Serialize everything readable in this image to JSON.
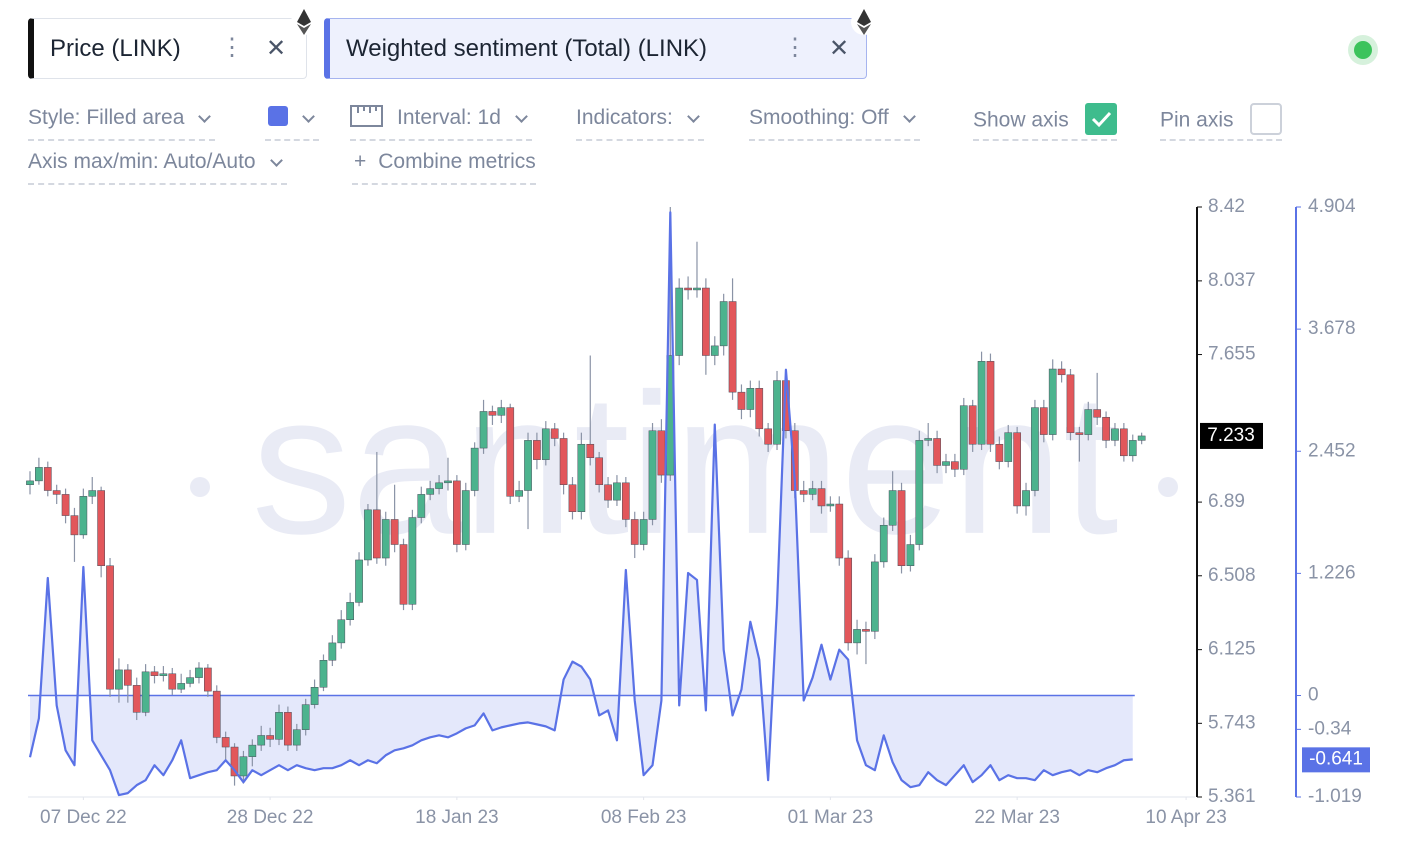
{
  "toolbar": {
    "style": "Style: Filled area",
    "interval": "Interval: 1d",
    "indicators": "Indicators:",
    "smoothing": "Smoothing: Off",
    "show_axis": "Show axis",
    "pin_axis": "Pin axis",
    "axis_range": "Axis max/min: Auto/Auto",
    "combine": "Combine metrics"
  },
  "watermark": "santiment",
  "chart_data": {
    "type": "candlestick",
    "x": [
      "2022-12-01",
      "2022-12-02",
      "2022-12-03",
      "2022-12-04",
      "2022-12-05",
      "2022-12-06",
      "2022-12-07",
      "2022-12-08",
      "2022-12-09",
      "2022-12-10",
      "2022-12-11",
      "2022-12-12",
      "2022-12-13",
      "2022-12-14",
      "2022-12-15",
      "2022-12-16",
      "2022-12-17",
      "2022-12-18",
      "2022-12-19",
      "2022-12-20",
      "2022-12-21",
      "2022-12-22",
      "2022-12-23",
      "2022-12-24",
      "2022-12-25",
      "2022-12-26",
      "2022-12-27",
      "2022-12-28",
      "2022-12-29",
      "2022-12-30",
      "2022-12-31",
      "2023-01-01",
      "2023-01-02",
      "2023-01-03",
      "2023-01-04",
      "2023-01-05",
      "2023-01-06",
      "2023-01-07",
      "2023-01-08",
      "2023-01-09",
      "2023-01-10",
      "2023-01-11",
      "2023-01-12",
      "2023-01-13",
      "2023-01-14",
      "2023-01-15",
      "2023-01-16",
      "2023-01-17",
      "2023-01-18",
      "2023-01-19",
      "2023-01-20",
      "2023-01-21",
      "2023-01-22",
      "2023-01-23",
      "2023-01-24",
      "2023-01-25",
      "2023-01-26",
      "2023-01-27",
      "2023-01-28",
      "2023-01-29",
      "2023-01-30",
      "2023-01-31",
      "2023-02-01",
      "2023-02-02",
      "2023-02-03",
      "2023-02-04",
      "2023-02-05",
      "2023-02-06",
      "2023-02-07",
      "2023-02-08",
      "2023-02-09",
      "2023-02-10",
      "2023-02-11",
      "2023-02-12",
      "2023-02-13",
      "2023-02-14",
      "2023-02-15",
      "2023-02-16",
      "2023-02-17",
      "2023-02-18",
      "2023-02-19",
      "2023-02-20",
      "2023-02-21",
      "2023-02-22",
      "2023-02-23",
      "2023-02-24",
      "2023-02-25",
      "2023-02-26",
      "2023-02-27",
      "2023-02-28",
      "2023-03-01",
      "2023-03-02",
      "2023-03-03",
      "2023-03-04",
      "2023-03-05",
      "2023-03-06",
      "2023-03-07",
      "2023-03-08",
      "2023-03-09",
      "2023-03-10",
      "2023-03-11",
      "2023-03-12",
      "2023-03-13",
      "2023-03-14",
      "2023-03-15",
      "2023-03-16",
      "2023-03-17",
      "2023-03-18",
      "2023-03-19",
      "2023-03-20",
      "2023-03-21",
      "2023-03-22",
      "2023-03-23",
      "2023-03-24",
      "2023-03-25",
      "2023-03-26",
      "2023-03-27",
      "2023-03-28",
      "2023-03-29",
      "2023-03-30",
      "2023-03-31",
      "2023-04-01",
      "2023-04-02",
      "2023-04-03",
      "2023-04-04",
      "2023-04-05"
    ],
    "xlim": [
      "2022-12-01",
      "2023-04-11"
    ],
    "xticks": [
      {
        "value": "2022-12-07",
        "label": "07 Dec 22"
      },
      {
        "value": "2022-12-28",
        "label": "28 Dec 22"
      },
      {
        "value": "2023-01-18",
        "label": "18 Jan 23"
      },
      {
        "value": "2023-02-08",
        "label": "08 Feb 23"
      },
      {
        "value": "2023-03-01",
        "label": "01 Mar 23"
      },
      {
        "value": "2023-03-22",
        "label": "22 Mar 23"
      },
      {
        "value": "2023-04-10",
        "label": "10 Apr 23"
      }
    ],
    "ylim": [
      5.361,
      8.42
    ],
    "yticks": [
      5.361,
      5.743,
      6.125,
      6.508,
      6.89,
      7.655,
      8.037,
      8.42
    ],
    "y2lim": [
      -1.019,
      4.904
    ],
    "y2ticks": [
      -1.019,
      -0.34,
      0,
      1.226,
      2.452,
      3.678,
      4.904
    ],
    "series": [
      {
        "name": "Price (LINK)",
        "type": "candlestick",
        "up_color": "#4cb38e",
        "down_color": "#e2575b",
        "open": [
          6.98,
          7.0,
          7.07,
          6.95,
          6.93,
          6.82,
          6.72,
          6.92,
          6.95,
          6.56,
          5.92,
          6.02,
          5.94,
          5.8,
          6.01,
          5.99,
          6.0,
          5.92,
          5.95,
          5.98,
          6.03,
          5.91,
          5.67,
          5.62,
          5.47,
          5.57,
          5.63,
          5.68,
          5.66,
          5.8,
          5.63,
          5.71,
          5.84,
          5.93,
          6.07,
          6.16,
          6.28,
          6.37,
          6.59,
          6.85,
          6.6,
          6.8,
          6.67,
          6.36,
          6.81,
          6.93,
          6.96,
          6.99,
          7.0,
          6.67,
          6.95,
          7.17,
          7.36,
          7.34,
          7.38,
          6.92,
          6.95,
          7.21,
          7.11,
          7.27,
          7.22,
          6.98,
          6.84,
          7.19,
          7.12,
          6.98,
          6.9,
          6.99,
          6.8,
          6.67,
          6.8,
          7.26,
          7.03,
          7.65,
          8.0,
          7.99,
          8.0,
          7.65,
          7.7,
          7.93,
          7.46,
          7.37,
          7.48,
          7.27,
          7.19,
          7.52,
          7.26,
          6.95,
          6.93,
          6.96,
          6.87,
          6.88,
          6.6,
          6.16,
          6.23,
          6.22,
          6.58,
          6.77,
          6.95,
          6.56,
          6.67,
          7.21,
          7.22,
          7.08,
          7.1,
          7.06,
          7.39,
          7.19,
          7.62,
          7.19,
          7.1,
          7.25,
          6.87,
          6.95,
          7.38,
          7.24,
          7.58,
          7.55,
          7.25,
          7.24,
          7.37,
          7.33,
          7.21,
          7.27,
          7.13,
          7.21
        ],
        "high": [
          7.05,
          7.12,
          7.1,
          6.98,
          6.96,
          6.86,
          6.96,
          7.02,
          6.97,
          6.6,
          6.08,
          6.05,
          5.98,
          6.05,
          6.04,
          6.04,
          6.03,
          6.0,
          6.02,
          6.06,
          6.05,
          5.94,
          5.7,
          5.64,
          5.6,
          5.66,
          5.73,
          5.72,
          5.84,
          5.83,
          5.74,
          5.87,
          5.97,
          6.1,
          6.2,
          6.33,
          6.42,
          6.63,
          6.88,
          7.15,
          6.84,
          6.98,
          6.7,
          6.85,
          6.97,
          7.0,
          7.03,
          7.12,
          7.03,
          6.99,
          7.2,
          7.42,
          7.39,
          7.42,
          7.4,
          7.0,
          7.25,
          7.25,
          7.31,
          7.3,
          7.25,
          7.02,
          7.25,
          7.65,
          7.15,
          7.02,
          7.03,
          7.02,
          6.84,
          6.84,
          7.3,
          7.32,
          8.42,
          8.05,
          8.06,
          8.24,
          8.05,
          7.75,
          7.97,
          8.05,
          7.5,
          7.52,
          7.52,
          7.3,
          7.57,
          7.56,
          7.3,
          7.0,
          7.0,
          7.0,
          6.92,
          6.92,
          6.64,
          6.28,
          6.27,
          6.62,
          6.81,
          7.05,
          6.99,
          6.72,
          7.26,
          7.3,
          7.26,
          7.14,
          7.14,
          7.43,
          7.42,
          7.67,
          7.66,
          7.23,
          7.29,
          7.28,
          6.99,
          7.42,
          7.42,
          7.63,
          7.62,
          7.58,
          7.28,
          7.41,
          7.56,
          7.36,
          7.3,
          7.3,
          7.24,
          7.25
        ],
        "low": [
          6.93,
          6.98,
          6.92,
          6.88,
          6.78,
          6.58,
          6.7,
          6.88,
          6.5,
          5.88,
          5.85,
          5.85,
          5.76,
          5.78,
          5.95,
          5.96,
          5.89,
          5.9,
          5.93,
          5.95,
          5.88,
          5.64,
          5.55,
          5.42,
          5.43,
          5.52,
          5.6,
          5.62,
          5.63,
          5.6,
          5.6,
          5.68,
          5.82,
          5.91,
          6.04,
          6.13,
          6.25,
          6.35,
          6.56,
          6.57,
          6.56,
          6.63,
          6.33,
          6.33,
          6.78,
          6.9,
          6.93,
          6.95,
          6.63,
          6.64,
          6.92,
          7.14,
          7.29,
          7.3,
          6.88,
          6.89,
          6.75,
          7.06,
          7.08,
          7.18,
          6.93,
          6.8,
          6.8,
          7.08,
          6.94,
          6.86,
          6.87,
          6.76,
          6.6,
          6.64,
          6.77,
          6.99,
          7.0,
          7.6,
          7.94,
          7.95,
          7.55,
          7.6,
          7.65,
          7.42,
          7.32,
          7.33,
          7.23,
          7.15,
          7.16,
          7.22,
          6.91,
          6.89,
          6.9,
          6.83,
          6.84,
          6.56,
          6.12,
          6.1,
          6.05,
          6.18,
          6.55,
          6.74,
          6.52,
          6.53,
          6.64,
          7.18,
          7.04,
          7.04,
          7.02,
          7.03,
          7.15,
          7.16,
          7.15,
          7.06,
          7.07,
          6.83,
          6.82,
          6.92,
          7.2,
          7.21,
          7.51,
          7.21,
          7.1,
          7.21,
          7.29,
          7.17,
          7.18,
          7.1,
          7.1,
          7.19
        ],
        "close": [
          7.0,
          7.07,
          6.95,
          6.93,
          6.82,
          6.72,
          6.92,
          6.95,
          6.56,
          5.92,
          6.02,
          5.94,
          5.8,
          6.01,
          5.99,
          6.0,
          5.92,
          5.95,
          5.98,
          6.03,
          5.91,
          5.67,
          5.62,
          5.47,
          5.57,
          5.63,
          5.68,
          5.66,
          5.8,
          5.63,
          5.71,
          5.84,
          5.93,
          6.07,
          6.16,
          6.28,
          6.37,
          6.59,
          6.85,
          6.6,
          6.8,
          6.67,
          6.36,
          6.81,
          6.93,
          6.96,
          6.99,
          7.0,
          6.67,
          6.95,
          7.17,
          7.36,
          7.34,
          7.38,
          6.92,
          6.95,
          7.21,
          7.11,
          7.27,
          7.22,
          6.98,
          6.84,
          7.19,
          7.12,
          6.98,
          6.9,
          6.99,
          6.8,
          6.67,
          6.8,
          7.26,
          7.03,
          7.65,
          8.0,
          7.99,
          8.0,
          7.65,
          7.7,
          7.93,
          7.46,
          7.37,
          7.48,
          7.27,
          7.19,
          7.52,
          7.26,
          6.95,
          6.93,
          6.96,
          6.87,
          6.88,
          6.6,
          6.16,
          6.23,
          6.22,
          6.58,
          6.77,
          6.95,
          6.56,
          6.67,
          7.21,
          7.22,
          7.08,
          7.1,
          7.06,
          7.39,
          7.19,
          7.62,
          7.19,
          7.1,
          7.25,
          6.87,
          6.95,
          7.38,
          7.24,
          7.58,
          7.55,
          7.25,
          7.24,
          7.37,
          7.33,
          7.21,
          7.27,
          7.13,
          7.21,
          7.233
        ]
      },
      {
        "name": "Weighted sentiment (Total) (LINK)",
        "type": "area",
        "axis": "y2",
        "color": "#5a72e6",
        "fill": "#e4e8fb",
        "values": [
          -0.62,
          -0.23,
          1.18,
          -0.1,
          -0.55,
          -0.7,
          1.29,
          -0.45,
          -0.6,
          -0.75,
          -1.0,
          -0.98,
          -0.9,
          -0.85,
          -0.7,
          -0.8,
          -0.65,
          -0.45,
          -0.83,
          -0.8,
          -0.77,
          -0.75,
          -0.65,
          -0.75,
          -0.87,
          -0.75,
          -0.8,
          -0.75,
          -0.7,
          -0.75,
          -0.7,
          -0.73,
          -0.75,
          -0.73,
          -0.73,
          -0.7,
          -0.65,
          -0.7,
          -0.65,
          -0.68,
          -0.6,
          -0.55,
          -0.53,
          -0.5,
          -0.45,
          -0.42,
          -0.4,
          -0.42,
          -0.38,
          -0.33,
          -0.3,
          -0.18,
          -0.35,
          -0.32,
          -0.3,
          -0.28,
          -0.27,
          -0.29,
          -0.31,
          -0.35,
          0.16,
          0.34,
          0.29,
          0.16,
          -0.2,
          -0.15,
          -0.45,
          1.26,
          -0.05,
          -0.8,
          -0.7,
          -0.05,
          4.85,
          -0.1,
          1.23,
          1.16,
          -0.15,
          2.72,
          0.46,
          -0.2,
          0.06,
          0.74,
          0.36,
          -0.85,
          0.91,
          3.27,
          2.16,
          -0.05,
          0.18,
          0.51,
          0.16,
          0.46,
          0.36,
          -0.45,
          -0.7,
          -0.75,
          -0.4,
          -0.67,
          -0.85,
          -0.92,
          -0.9,
          -0.77,
          -0.85,
          -0.9,
          -0.8,
          -0.7,
          -0.87,
          -0.8,
          -0.7,
          -0.85,
          -0.8,
          -0.83,
          -0.83,
          -0.85,
          -0.75,
          -0.8,
          -0.77,
          -0.75,
          -0.8,
          -0.75,
          -0.77,
          -0.73,
          -0.7,
          -0.65,
          -0.641,
          null
        ]
      }
    ]
  }
}
